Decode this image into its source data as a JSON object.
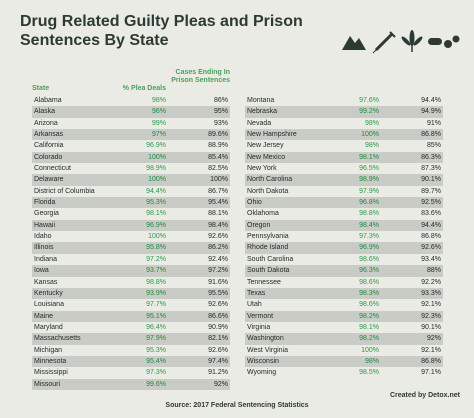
{
  "title": "Drug Related Guilty Pleas and Prison Sentences By State",
  "icons": [
    "mountains-icon",
    "syringe-icon",
    "cannabis-leaf-icon",
    "pills-icon"
  ],
  "colors": {
    "accent": "#4aa05d",
    "shade": "#c9cbc6",
    "background": "#e9ebe4"
  },
  "headers": {
    "state": "State",
    "pct": "% Plea Deals",
    "sentences": "Cases Ending In Prison Sentences"
  },
  "left_rows": [
    {
      "state": "Alabama",
      "pct": "98%",
      "sent": "86%"
    },
    {
      "state": "Alaska",
      "pct": "96%",
      "sent": "95%"
    },
    {
      "state": "Arizona",
      "pct": "99%",
      "sent": "93%"
    },
    {
      "state": "Arkansas",
      "pct": "97%",
      "sent": "89.6%"
    },
    {
      "state": "California",
      "pct": "96.9%",
      "sent": "88.9%"
    },
    {
      "state": "Colorado",
      "pct": "100%",
      "sent": "85.4%"
    },
    {
      "state": "Connecticut",
      "pct": "98.9%",
      "sent": "82.5%"
    },
    {
      "state": "Delaware",
      "pct": "100%",
      "sent": "100%"
    },
    {
      "state": "District of Columbia",
      "pct": "94.4%",
      "sent": "86.7%"
    },
    {
      "state": "Florida",
      "pct": "95.3%",
      "sent": "95.4%"
    },
    {
      "state": "Georgia",
      "pct": "98.1%",
      "sent": "88.1%"
    },
    {
      "state": "Hawaii",
      "pct": "96.9%",
      "sent": "98.4%"
    },
    {
      "state": "Idaho",
      "pct": "100%",
      "sent": "92.6%"
    },
    {
      "state": "Illinois",
      "pct": "95.8%",
      "sent": "86.2%"
    },
    {
      "state": "Indiana",
      "pct": "97.2%",
      "sent": "92.4%"
    },
    {
      "state": "Iowa",
      "pct": "93.7%",
      "sent": "97.2%"
    },
    {
      "state": "Kansas",
      "pct": "98.8%",
      "sent": "91.6%"
    },
    {
      "state": "Kentucky",
      "pct": "93.9%",
      "sent": "95.5%"
    },
    {
      "state": "Louisiana",
      "pct": "97.7%",
      "sent": "92.6%"
    },
    {
      "state": "Maine",
      "pct": "95.1%",
      "sent": "86.6%"
    },
    {
      "state": "Maryland",
      "pct": "96.4%",
      "sent": "90.9%"
    },
    {
      "state": "Massachusetts",
      "pct": "97.9%",
      "sent": "82.1%"
    },
    {
      "state": "Michigan",
      "pct": "95.3%",
      "sent": "92.6%"
    },
    {
      "state": "Minnesota",
      "pct": "95.4%",
      "sent": "97.4%"
    },
    {
      "state": "Mississippi",
      "pct": "97.3%",
      "sent": "91.2%"
    },
    {
      "state": "Missouri",
      "pct": "99.6%",
      "sent": "92%"
    }
  ],
  "right_rows": [
    {
      "state": "Montana",
      "pct": "97.6%",
      "sent": "94.4%"
    },
    {
      "state": "Nebraska",
      "pct": "99.2%",
      "sent": "94.9%"
    },
    {
      "state": "Nevada",
      "pct": "98%",
      "sent": "91%"
    },
    {
      "state": "New Hampshire",
      "pct": "100%",
      "sent": "86.8%"
    },
    {
      "state": "New Jersey",
      "pct": "98%",
      "sent": "85%"
    },
    {
      "state": "New Mexico",
      "pct": "98.1%",
      "sent": "86.3%"
    },
    {
      "state": "New York",
      "pct": "96.5%",
      "sent": "87.3%"
    },
    {
      "state": "North Carolina",
      "pct": "98.9%",
      "sent": "90.1%"
    },
    {
      "state": "North Dakota",
      "pct": "97.9%",
      "sent": "89.7%"
    },
    {
      "state": "Ohio",
      "pct": "96.8%",
      "sent": "92.5%"
    },
    {
      "state": "Oklahoma",
      "pct": "98.8%",
      "sent": "83.6%"
    },
    {
      "state": "Oregon",
      "pct": "98.4%",
      "sent": "94.4%"
    },
    {
      "state": "Pennsylvania",
      "pct": "97.3%",
      "sent": "86.8%"
    },
    {
      "state": "Rhode Island",
      "pct": "96.9%",
      "sent": "92.6%"
    },
    {
      "state": "South Carolina",
      "pct": "98.6%",
      "sent": "93.4%"
    },
    {
      "state": "South Dakota",
      "pct": "96.3%",
      "sent": "88%"
    },
    {
      "state": "Tennessee",
      "pct": "98.6%",
      "sent": "92.2%"
    },
    {
      "state": "Texas",
      "pct": "98.3%",
      "sent": "93.3%"
    },
    {
      "state": "Utah",
      "pct": "98.6%",
      "sent": "92.1%"
    },
    {
      "state": "Vermont",
      "pct": "98.2%",
      "sent": "92.3%"
    },
    {
      "state": "Virginia",
      "pct": "98.1%",
      "sent": "90.1%"
    },
    {
      "state": "Washington",
      "pct": "98.2%",
      "sent": "92%"
    },
    {
      "state": "West Virginia",
      "pct": "100%",
      "sent": "92.1%"
    },
    {
      "state": "Wisconsin",
      "pct": "98%",
      "sent": "86.8%"
    },
    {
      "state": "Wyoming",
      "pct": "98.5%",
      "sent": "97.1%"
    }
  ],
  "credit": "Created by Detox.net",
  "source": "Source: 2017 Federal Sentencing Statistics"
}
